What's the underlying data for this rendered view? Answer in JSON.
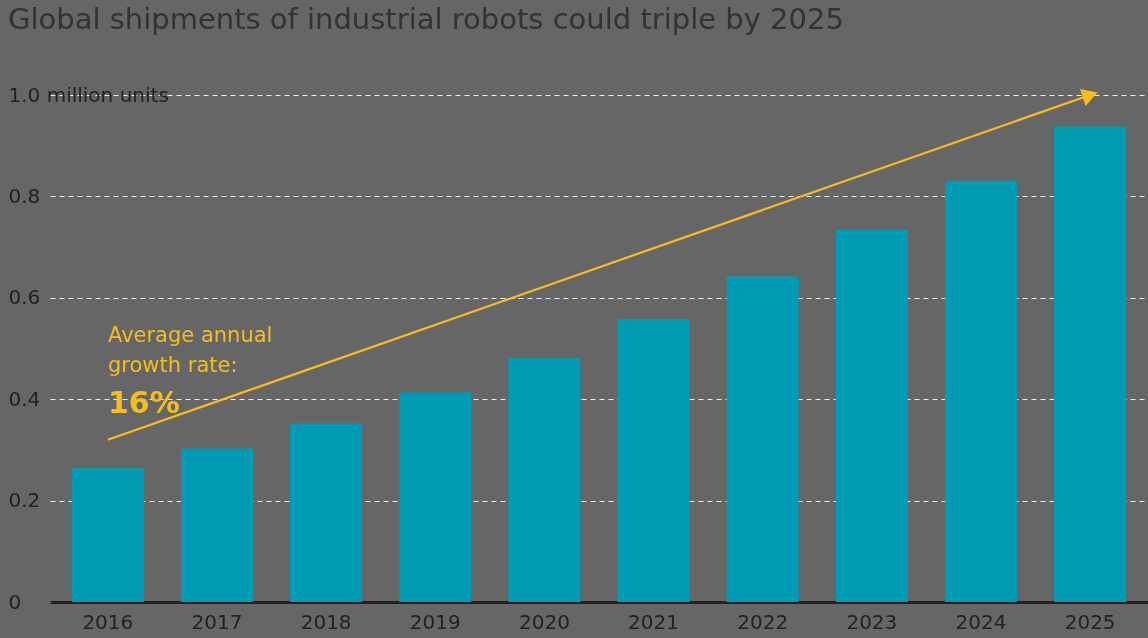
{
  "chart_data": {
    "type": "bar",
    "title": "Global shipments of industrial robots could triple by 2025",
    "categories": [
      "2016",
      "2017",
      "2018",
      "2019",
      "2020",
      "2021",
      "2022",
      "2023",
      "2024",
      "2025"
    ],
    "series": [
      {
        "color": "#009bb5",
        "values": [
          0.264,
          0.303,
          0.352,
          0.413,
          0.481,
          0.558,
          0.642,
          0.734,
          0.831,
          0.938
        ]
      },
      {
        "type": "line",
        "color": "#f5bd1f",
        "values": [
          0.32,
          null,
          null,
          null,
          null,
          null,
          null,
          null,
          null,
          1.0
        ]
      }
    ],
    "ylim": [
      0,
      1.0
    ],
    "yticks": [
      0,
      0.2,
      0.4,
      0.6,
      {
        "value": 0.8,
        "label": "0.8"
      },
      {
        "value": 1.0,
        "label": "1.0 million units"
      }
    ],
    "grid": "y",
    "annotations": [
      "Average annual\ngrowth rate:\n16%"
    ]
  }
}
